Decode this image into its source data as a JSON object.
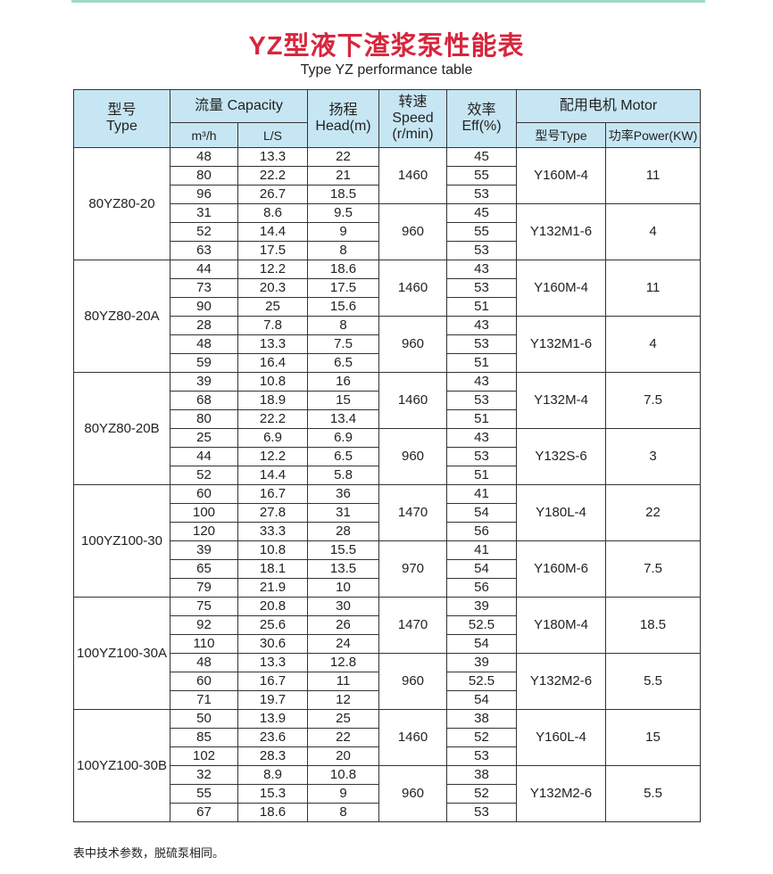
{
  "title": "YZ型液下渣浆泵性能表",
  "subtitle": "Type YZ performance table",
  "headers": {
    "type": "型号",
    "type_en": "Type",
    "capacity": "流量 Capacity",
    "m3h": "m³/h",
    "ls": "L/S",
    "head_cn": "扬程",
    "head": "Head(m)",
    "speed_cn": "转速",
    "speed": "Speed",
    "speed_unit": "(r/min)",
    "eff_cn": "效率",
    "eff": "Eff(%)",
    "motor": "配用电机 Motor",
    "motor_type": "型号Type",
    "power": "功率Power(KW)"
  },
  "groups": [
    {
      "type": "80YZ80-20",
      "speeds": [
        {
          "speed": "1460",
          "motor": "Y160M-4",
          "power": "11",
          "rows": [
            [
              "48",
              "13.3",
              "22",
              "45"
            ],
            [
              "80",
              "22.2",
              "21",
              "55"
            ],
            [
              "96",
              "26.7",
              "18.5",
              "53"
            ]
          ]
        },
        {
          "speed": "960",
          "motor": "Y132M1-6",
          "power": "4",
          "rows": [
            [
              "31",
              "8.6",
              "9.5",
              "45"
            ],
            [
              "52",
              "14.4",
              "9",
              "55"
            ],
            [
              "63",
              "17.5",
              "8",
              "53"
            ]
          ]
        }
      ]
    },
    {
      "type": "80YZ80-20A",
      "speeds": [
        {
          "speed": "1460",
          "motor": "Y160M-4",
          "power": "11",
          "rows": [
            [
              "44",
              "12.2",
              "18.6",
              "43"
            ],
            [
              "73",
              "20.3",
              "17.5",
              "53"
            ],
            [
              "90",
              "25",
              "15.6",
              "51"
            ]
          ]
        },
        {
          "speed": "960",
          "motor": "Y132M1-6",
          "power": "4",
          "rows": [
            [
              "28",
              "7.8",
              "8",
              "43"
            ],
            [
              "48",
              "13.3",
              "7.5",
              "53"
            ],
            [
              "59",
              "16.4",
              "6.5",
              "51"
            ]
          ]
        }
      ]
    },
    {
      "type": "80YZ80-20B",
      "speeds": [
        {
          "speed": "1460",
          "motor": "Y132M-4",
          "power": "7.5",
          "rows": [
            [
              "39",
              "10.8",
              "16",
              "43"
            ],
            [
              "68",
              "18.9",
              "15",
              "53"
            ],
            [
              "80",
              "22.2",
              "13.4",
              "51"
            ]
          ]
        },
        {
          "speed": "960",
          "motor": "Y132S-6",
          "power": "3",
          "rows": [
            [
              "25",
              "6.9",
              "6.9",
              "43"
            ],
            [
              "44",
              "12.2",
              "6.5",
              "53"
            ],
            [
              "52",
              "14.4",
              "5.8",
              "51"
            ]
          ]
        }
      ]
    },
    {
      "type": "100YZ100-30",
      "speeds": [
        {
          "speed": "1470",
          "motor": "Y180L-4",
          "power": "22",
          "rows": [
            [
              "60",
              "16.7",
              "36",
              "41"
            ],
            [
              "100",
              "27.8",
              "31",
              "54"
            ],
            [
              "120",
              "33.3",
              "28",
              "56"
            ]
          ]
        },
        {
          "speed": "970",
          "motor": "Y160M-6",
          "power": "7.5",
          "rows": [
            [
              "39",
              "10.8",
              "15.5",
              "41"
            ],
            [
              "65",
              "18.1",
              "13.5",
              "54"
            ],
            [
              "79",
              "21.9",
              "10",
              "56"
            ]
          ]
        }
      ]
    },
    {
      "type": "100YZ100-30A",
      "speeds": [
        {
          "speed": "1470",
          "motor": "Y180M-4",
          "power": "18.5",
          "rows": [
            [
              "75",
              "20.8",
              "30",
              "39"
            ],
            [
              "92",
              "25.6",
              "26",
              "52.5"
            ],
            [
              "110",
              "30.6",
              "24",
              "54"
            ]
          ]
        },
        {
          "speed": "960",
          "motor": "Y132M2-6",
          "power": "5.5",
          "rows": [
            [
              "48",
              "13.3",
              "12.8",
              "39"
            ],
            [
              "60",
              "16.7",
              "11",
              "52.5"
            ],
            [
              "71",
              "19.7",
              "12",
              "54"
            ]
          ]
        }
      ]
    },
    {
      "type": "100YZ100-30B",
      "speeds": [
        {
          "speed": "1460",
          "motor": "Y160L-4",
          "power": "15",
          "rows": [
            [
              "50",
              "13.9",
              "25",
              "38"
            ],
            [
              "85",
              "23.6",
              "22",
              "52"
            ],
            [
              "102",
              "28.3",
              "20",
              "53"
            ]
          ]
        },
        {
          "speed": "960",
          "motor": "Y132M2-6",
          "power": "5.5",
          "rows": [
            [
              "32",
              "8.9",
              "10.8",
              "38"
            ],
            [
              "55",
              "15.3",
              "9",
              "52"
            ],
            [
              "67",
              "18.6",
              "8",
              "53"
            ]
          ]
        }
      ]
    }
  ],
  "note": "表中技术参数，脱硫泵相同。"
}
